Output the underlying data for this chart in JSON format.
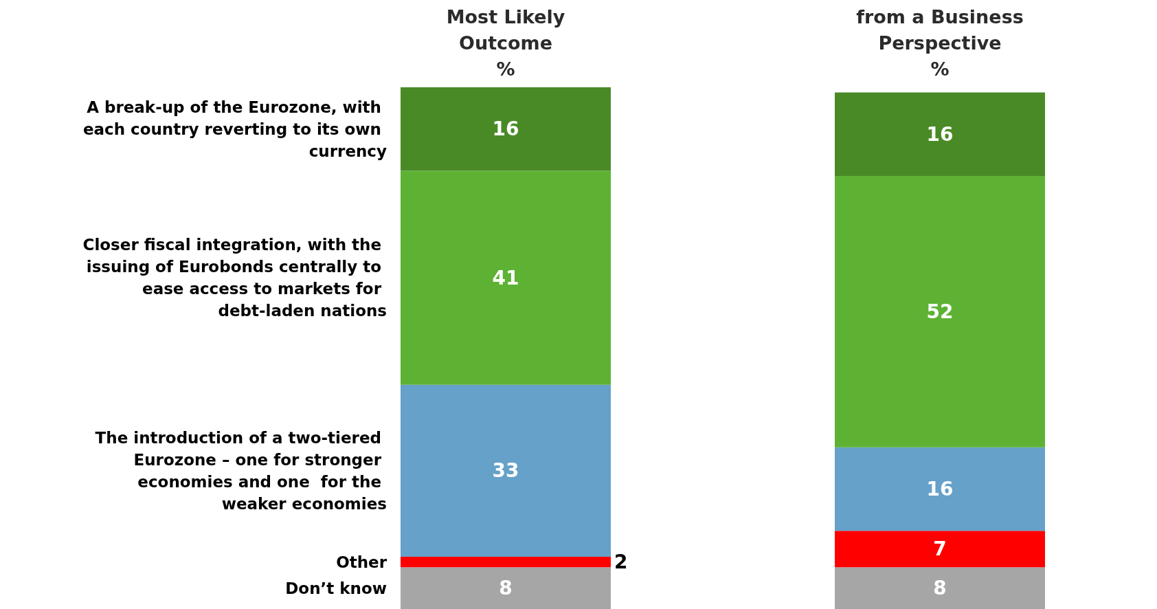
{
  "chart_data": {
    "type": "bar",
    "stacked": true,
    "categories": [
      "Most Likely\nOutcome\n%",
      "from a Business\nPerspective\n%"
    ],
    "series": [
      {
        "name": "Don’t know",
        "color": "#a6a6a6",
        "values": [
          8,
          8
        ]
      },
      {
        "name": "Other",
        "color": "#ff0000",
        "values": [
          2,
          7
        ]
      },
      {
        "name": "The introduction of a two-tiered Eurozone – one for stronger economies and one  for the weaker economies",
        "color": "#65a1c9",
        "values": [
          33,
          16
        ]
      },
      {
        "name": "Closer fiscal integration, with the issuing of Eurobonds centrally to ease access to markets for debt-laden nations",
        "color": "#5db233",
        "values": [
          41,
          52
        ]
      },
      {
        "name": "A break-up of the Eurozone, with each country reverting to its own currency",
        "color": "#4a8a26",
        "values": [
          16,
          16
        ]
      }
    ],
    "tick_labels": "x",
    "data_labels": true,
    "legend": false
  }
}
